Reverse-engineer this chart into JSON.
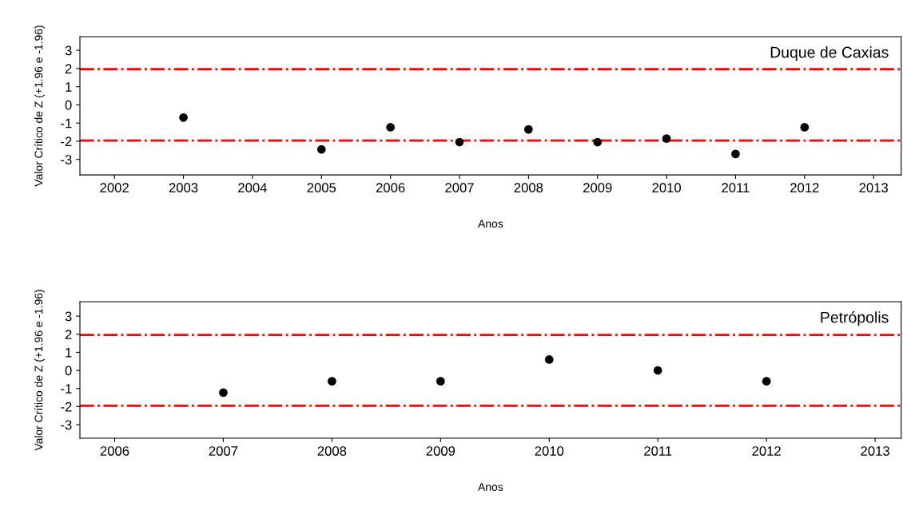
{
  "chart_data": [
    {
      "type": "scatter",
      "title": "Duque de Caxias",
      "xlabel": "Anos",
      "ylabel": "Valor Crítico de Z (+1.96 e -1.96)",
      "marker": "circle",
      "grid": false,
      "x": [
        2003,
        2005,
        2006,
        2007,
        2008,
        2009,
        2010,
        2011,
        2012
      ],
      "series": [
        {
          "color": "#000000",
          "values": [
            -0.7,
            -2.45,
            -1.23,
            -2.05,
            -1.35,
            -2.05,
            -1.85,
            -2.7,
            -1.23
          ]
        }
      ],
      "xlim": [
        2001.5,
        2013.4
      ],
      "xticks": [
        2002,
        2003,
        2004,
        2005,
        2006,
        2007,
        2008,
        2009,
        2010,
        2011,
        2012,
        2013
      ],
      "ylim": [
        -3.85,
        3.75
      ],
      "yticks": [
        {
          "value": 3,
          "label": "3"
        },
        {
          "value": 2,
          "label": "2"
        },
        {
          "value": 1,
          "label": "1"
        },
        {
          "value": 0,
          "label": "0"
        },
        {
          "value": -1,
          "label": "-1"
        },
        {
          "value": -2,
          "label": "-2"
        },
        {
          "value": -3,
          "label": "-3"
        }
      ],
      "ref_lines": [
        {
          "axis": "y",
          "value": 1.96,
          "color": "#ff0000",
          "line_style": "dashdot"
        },
        {
          "axis": "y",
          "value": -1.96,
          "color": "#ff0000",
          "line_style": "dashdot"
        }
      ]
    },
    {
      "type": "scatter",
      "title": "Petrópolis",
      "xlabel": "Anos",
      "ylabel": "Valor Crítico de Z (+1.96 e -1.96)",
      "marker": "circle",
      "grid": false,
      "x": [
        2007,
        2008,
        2009,
        2010,
        2011,
        2012
      ],
      "series": [
        {
          "color": "#000000",
          "values": [
            -1.23,
            -0.6,
            -0.6,
            0.6,
            0.0,
            -0.6
          ]
        }
      ],
      "xlim": [
        2005.68,
        2013.24
      ],
      "xticks": [
        2006,
        2007,
        2008,
        2009,
        2010,
        2011,
        2012,
        2013
      ],
      "ylim": [
        -3.75,
        3.8
      ],
      "yticks": [
        {
          "value": 3,
          "label": "3"
        },
        {
          "value": 2,
          "label": "2"
        },
        {
          "value": 1,
          "label": "1"
        },
        {
          "value": 0,
          "label": "0"
        },
        {
          "value": -1,
          "label": "-1"
        },
        {
          "value": -2,
          "label": "-2"
        },
        {
          "value": -3,
          "label": "-3"
        }
      ],
      "ref_lines": [
        {
          "axis": "y",
          "value": 1.96,
          "color": "#ff0000",
          "line_style": "dashdot"
        },
        {
          "axis": "y",
          "value": -1.96,
          "color": "#ff0000",
          "line_style": "dashdot"
        }
      ]
    }
  ]
}
